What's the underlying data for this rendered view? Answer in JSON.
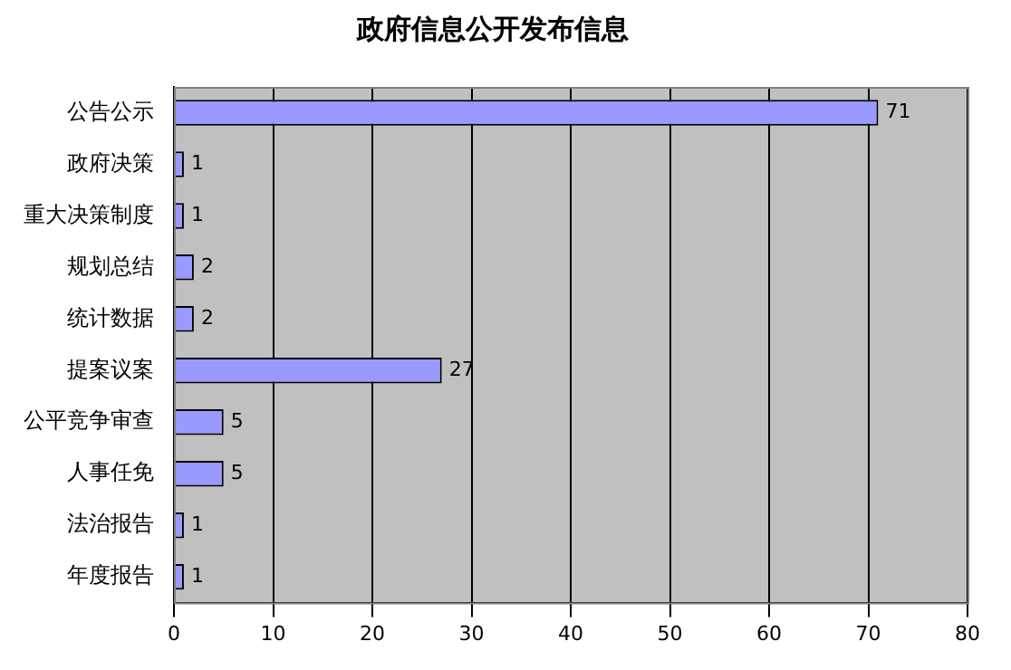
{
  "chart_data": {
    "type": "bar",
    "orientation": "horizontal",
    "title": "政府信息公开发布信息",
    "categories": [
      "公告公示",
      "政府决策",
      "重大决策制度",
      "规划总结",
      "统计数据",
      "提案议案",
      "公平竞争审查",
      "人事任免",
      "法治报告",
      "年度报告"
    ],
    "values": [
      71,
      1,
      1,
      2,
      2,
      27,
      5,
      5,
      1,
      1
    ],
    "color": "#9999ff",
    "xlim": [
      0,
      80
    ],
    "xticks": [
      0,
      10,
      20,
      30,
      40,
      50,
      60,
      70,
      80
    ],
    "grid": "x",
    "data_labels": true,
    "legend": false
  }
}
